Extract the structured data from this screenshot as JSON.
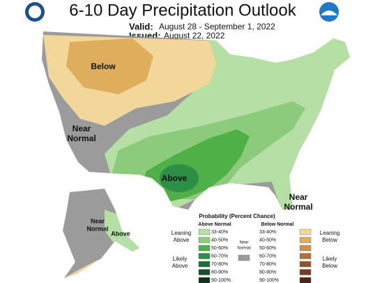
{
  "header": {
    "title": "6-10 Day Precipitation Outlook",
    "valid_label": "Valid:",
    "valid": "August 28 - September 1, 2022",
    "issued_label": "Issued:",
    "issued": "August 22, 2022"
  },
  "map": {
    "labels": [
      {
        "lines": [
          "Below"
        ]
      },
      {
        "lines": [
          "Near",
          "Normal"
        ]
      },
      {
        "lines": [
          "Above"
        ]
      },
      {
        "lines": [
          "Near",
          "Normal"
        ]
      },
      {
        "lines": [
          "Near",
          "Normal"
        ]
      },
      {
        "lines": [
          "Above"
        ]
      }
    ]
  },
  "legend": {
    "title": "Probability (Percent Chance)",
    "above_header": "Above Normal",
    "below_header": "Below Normal",
    "leaning_above": [
      "Leaning",
      "Above"
    ],
    "likely_above": [
      "Likely",
      "Above"
    ],
    "near_normal": [
      "Near",
      "Normal"
    ],
    "near_color": "#9b9b9b",
    "leaning_below": [
      "Leaning",
      "Below"
    ],
    "likely_below": [
      "Likely",
      "Below"
    ],
    "above": [
      {
        "range": "33-40%",
        "color": "#b5dfa5"
      },
      {
        "range": "40-50%",
        "color": "#8ccb7c"
      },
      {
        "range": "50-60%",
        "color": "#4fb048"
      },
      {
        "range": "60-70%",
        "color": "#2c8f45"
      },
      {
        "range": "70-80%",
        "color": "#1f6e3c"
      },
      {
        "range": "80-90%",
        "color": "#17502f"
      },
      {
        "range": "90-100%",
        "color": "#0e3318"
      }
    ],
    "below": [
      {
        "range": "33-40%",
        "color": "#f3d69a"
      },
      {
        "range": "40-50%",
        "color": "#dfae5c"
      },
      {
        "range": "50-60%",
        "color": "#d1914a"
      },
      {
        "range": "60-70%",
        "color": "#b5703a"
      },
      {
        "range": "70-80%",
        "color": "#93552c"
      },
      {
        "range": "80-90%",
        "color": "#763c22"
      },
      {
        "range": "90-100%",
        "color": "#4f2414"
      }
    ]
  }
}
